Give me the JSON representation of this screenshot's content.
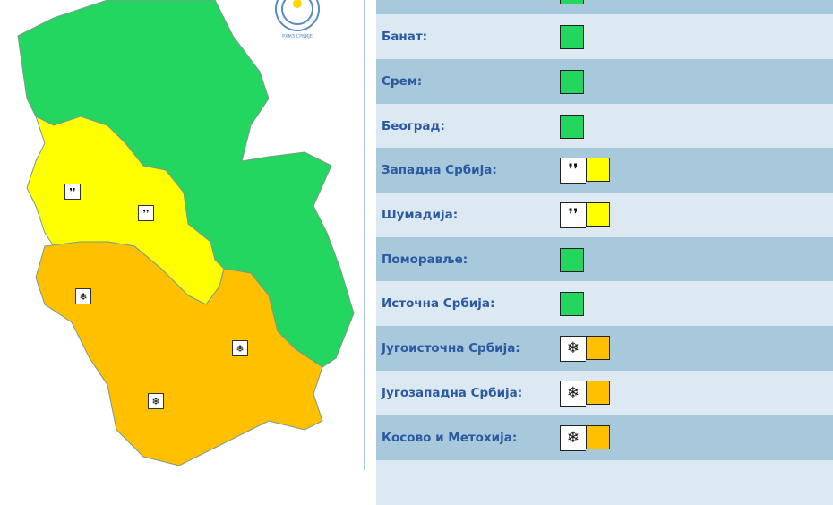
{
  "colors": {
    "green": "#22d660",
    "yellow": "#ffff00",
    "orange": "#ffc000",
    "row_dark": "#a8c8dc",
    "row_light": "#dde9f2",
    "label": "#2a5aa0"
  },
  "logo": {
    "text": "РХМЗ СРБИЈЕ"
  },
  "regions": [
    {
      "label": "",
      "level": "green",
      "icon": null
    },
    {
      "label": "Банат:",
      "level": "green",
      "icon": null
    },
    {
      "label": "Срем:",
      "level": "green",
      "icon": null
    },
    {
      "label": "Београд:",
      "level": "green",
      "icon": null
    },
    {
      "label": "Западна Србија:",
      "level": "yellow",
      "icon": "rain-icon"
    },
    {
      "label": "Шумадија:",
      "level": "yellow",
      "icon": "rain-icon"
    },
    {
      "label": "Поморавље:",
      "level": "green",
      "icon": null
    },
    {
      "label": "Источна Србија:",
      "level": "green",
      "icon": null
    },
    {
      "label": "Југоисточна Србија:",
      "level": "orange",
      "icon": "snow-icon"
    },
    {
      "label": "Југозападна Србија:",
      "level": "orange",
      "icon": "snow-icon"
    },
    {
      "label": "Косово и Метохија:",
      "level": "orange",
      "icon": "snow-icon"
    }
  ]
}
